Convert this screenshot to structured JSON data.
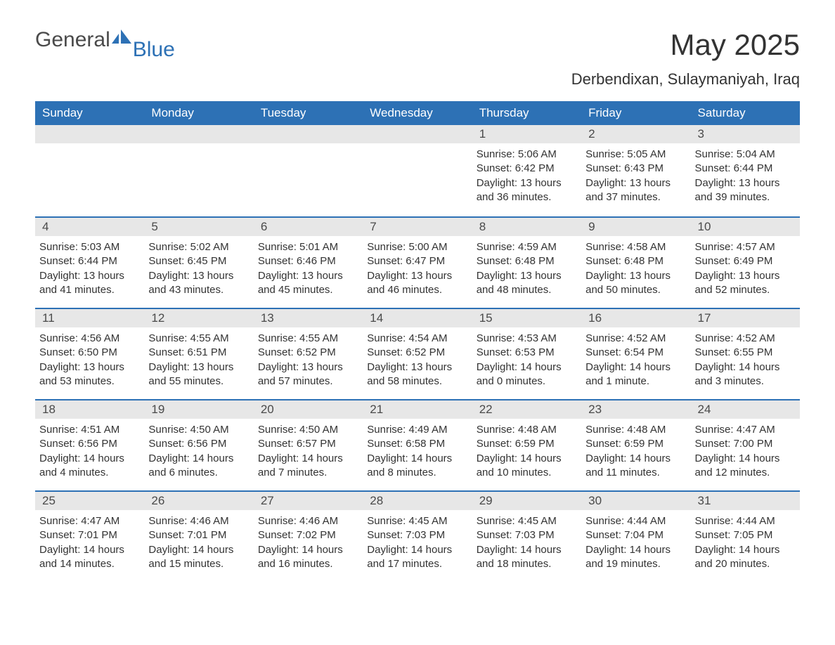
{
  "logo": {
    "text_general": "General",
    "text_blue": "Blue"
  },
  "title": {
    "month": "May 2025",
    "location": "Derbendixan, Sulaymaniyah, Iraq"
  },
  "colors": {
    "header_bg": "#2d71b5",
    "header_text": "#ffffff",
    "daynum_bg": "#e7e7e7",
    "row_border": "#2d71b5",
    "body_text": "#333333",
    "background": "#ffffff"
  },
  "day_headers": [
    "Sunday",
    "Monday",
    "Tuesday",
    "Wednesday",
    "Thursday",
    "Friday",
    "Saturday"
  ],
  "weeks": [
    [
      null,
      null,
      null,
      null,
      {
        "n": "1",
        "sunrise": "Sunrise: 5:06 AM",
        "sunset": "Sunset: 6:42 PM",
        "day1": "Daylight: 13 hours",
        "day2": "and 36 minutes."
      },
      {
        "n": "2",
        "sunrise": "Sunrise: 5:05 AM",
        "sunset": "Sunset: 6:43 PM",
        "day1": "Daylight: 13 hours",
        "day2": "and 37 minutes."
      },
      {
        "n": "3",
        "sunrise": "Sunrise: 5:04 AM",
        "sunset": "Sunset: 6:44 PM",
        "day1": "Daylight: 13 hours",
        "day2": "and 39 minutes."
      }
    ],
    [
      {
        "n": "4",
        "sunrise": "Sunrise: 5:03 AM",
        "sunset": "Sunset: 6:44 PM",
        "day1": "Daylight: 13 hours",
        "day2": "and 41 minutes."
      },
      {
        "n": "5",
        "sunrise": "Sunrise: 5:02 AM",
        "sunset": "Sunset: 6:45 PM",
        "day1": "Daylight: 13 hours",
        "day2": "and 43 minutes."
      },
      {
        "n": "6",
        "sunrise": "Sunrise: 5:01 AM",
        "sunset": "Sunset: 6:46 PM",
        "day1": "Daylight: 13 hours",
        "day2": "and 45 minutes."
      },
      {
        "n": "7",
        "sunrise": "Sunrise: 5:00 AM",
        "sunset": "Sunset: 6:47 PM",
        "day1": "Daylight: 13 hours",
        "day2": "and 46 minutes."
      },
      {
        "n": "8",
        "sunrise": "Sunrise: 4:59 AM",
        "sunset": "Sunset: 6:48 PM",
        "day1": "Daylight: 13 hours",
        "day2": "and 48 minutes."
      },
      {
        "n": "9",
        "sunrise": "Sunrise: 4:58 AM",
        "sunset": "Sunset: 6:48 PM",
        "day1": "Daylight: 13 hours",
        "day2": "and 50 minutes."
      },
      {
        "n": "10",
        "sunrise": "Sunrise: 4:57 AM",
        "sunset": "Sunset: 6:49 PM",
        "day1": "Daylight: 13 hours",
        "day2": "and 52 minutes."
      }
    ],
    [
      {
        "n": "11",
        "sunrise": "Sunrise: 4:56 AM",
        "sunset": "Sunset: 6:50 PM",
        "day1": "Daylight: 13 hours",
        "day2": "and 53 minutes."
      },
      {
        "n": "12",
        "sunrise": "Sunrise: 4:55 AM",
        "sunset": "Sunset: 6:51 PM",
        "day1": "Daylight: 13 hours",
        "day2": "and 55 minutes."
      },
      {
        "n": "13",
        "sunrise": "Sunrise: 4:55 AM",
        "sunset": "Sunset: 6:52 PM",
        "day1": "Daylight: 13 hours",
        "day2": "and 57 minutes."
      },
      {
        "n": "14",
        "sunrise": "Sunrise: 4:54 AM",
        "sunset": "Sunset: 6:52 PM",
        "day1": "Daylight: 13 hours",
        "day2": "and 58 minutes."
      },
      {
        "n": "15",
        "sunrise": "Sunrise: 4:53 AM",
        "sunset": "Sunset: 6:53 PM",
        "day1": "Daylight: 14 hours",
        "day2": "and 0 minutes."
      },
      {
        "n": "16",
        "sunrise": "Sunrise: 4:52 AM",
        "sunset": "Sunset: 6:54 PM",
        "day1": "Daylight: 14 hours",
        "day2": "and 1 minute."
      },
      {
        "n": "17",
        "sunrise": "Sunrise: 4:52 AM",
        "sunset": "Sunset: 6:55 PM",
        "day1": "Daylight: 14 hours",
        "day2": "and 3 minutes."
      }
    ],
    [
      {
        "n": "18",
        "sunrise": "Sunrise: 4:51 AM",
        "sunset": "Sunset: 6:56 PM",
        "day1": "Daylight: 14 hours",
        "day2": "and 4 minutes."
      },
      {
        "n": "19",
        "sunrise": "Sunrise: 4:50 AM",
        "sunset": "Sunset: 6:56 PM",
        "day1": "Daylight: 14 hours",
        "day2": "and 6 minutes."
      },
      {
        "n": "20",
        "sunrise": "Sunrise: 4:50 AM",
        "sunset": "Sunset: 6:57 PM",
        "day1": "Daylight: 14 hours",
        "day2": "and 7 minutes."
      },
      {
        "n": "21",
        "sunrise": "Sunrise: 4:49 AM",
        "sunset": "Sunset: 6:58 PM",
        "day1": "Daylight: 14 hours",
        "day2": "and 8 minutes."
      },
      {
        "n": "22",
        "sunrise": "Sunrise: 4:48 AM",
        "sunset": "Sunset: 6:59 PM",
        "day1": "Daylight: 14 hours",
        "day2": "and 10 minutes."
      },
      {
        "n": "23",
        "sunrise": "Sunrise: 4:48 AM",
        "sunset": "Sunset: 6:59 PM",
        "day1": "Daylight: 14 hours",
        "day2": "and 11 minutes."
      },
      {
        "n": "24",
        "sunrise": "Sunrise: 4:47 AM",
        "sunset": "Sunset: 7:00 PM",
        "day1": "Daylight: 14 hours",
        "day2": "and 12 minutes."
      }
    ],
    [
      {
        "n": "25",
        "sunrise": "Sunrise: 4:47 AM",
        "sunset": "Sunset: 7:01 PM",
        "day1": "Daylight: 14 hours",
        "day2": "and 14 minutes."
      },
      {
        "n": "26",
        "sunrise": "Sunrise: 4:46 AM",
        "sunset": "Sunset: 7:01 PM",
        "day1": "Daylight: 14 hours",
        "day2": "and 15 minutes."
      },
      {
        "n": "27",
        "sunrise": "Sunrise: 4:46 AM",
        "sunset": "Sunset: 7:02 PM",
        "day1": "Daylight: 14 hours",
        "day2": "and 16 minutes."
      },
      {
        "n": "28",
        "sunrise": "Sunrise: 4:45 AM",
        "sunset": "Sunset: 7:03 PM",
        "day1": "Daylight: 14 hours",
        "day2": "and 17 minutes."
      },
      {
        "n": "29",
        "sunrise": "Sunrise: 4:45 AM",
        "sunset": "Sunset: 7:03 PM",
        "day1": "Daylight: 14 hours",
        "day2": "and 18 minutes."
      },
      {
        "n": "30",
        "sunrise": "Sunrise: 4:44 AM",
        "sunset": "Sunset: 7:04 PM",
        "day1": "Daylight: 14 hours",
        "day2": "and 19 minutes."
      },
      {
        "n": "31",
        "sunrise": "Sunrise: 4:44 AM",
        "sunset": "Sunset: 7:05 PM",
        "day1": "Daylight: 14 hours",
        "day2": "and 20 minutes."
      }
    ]
  ]
}
